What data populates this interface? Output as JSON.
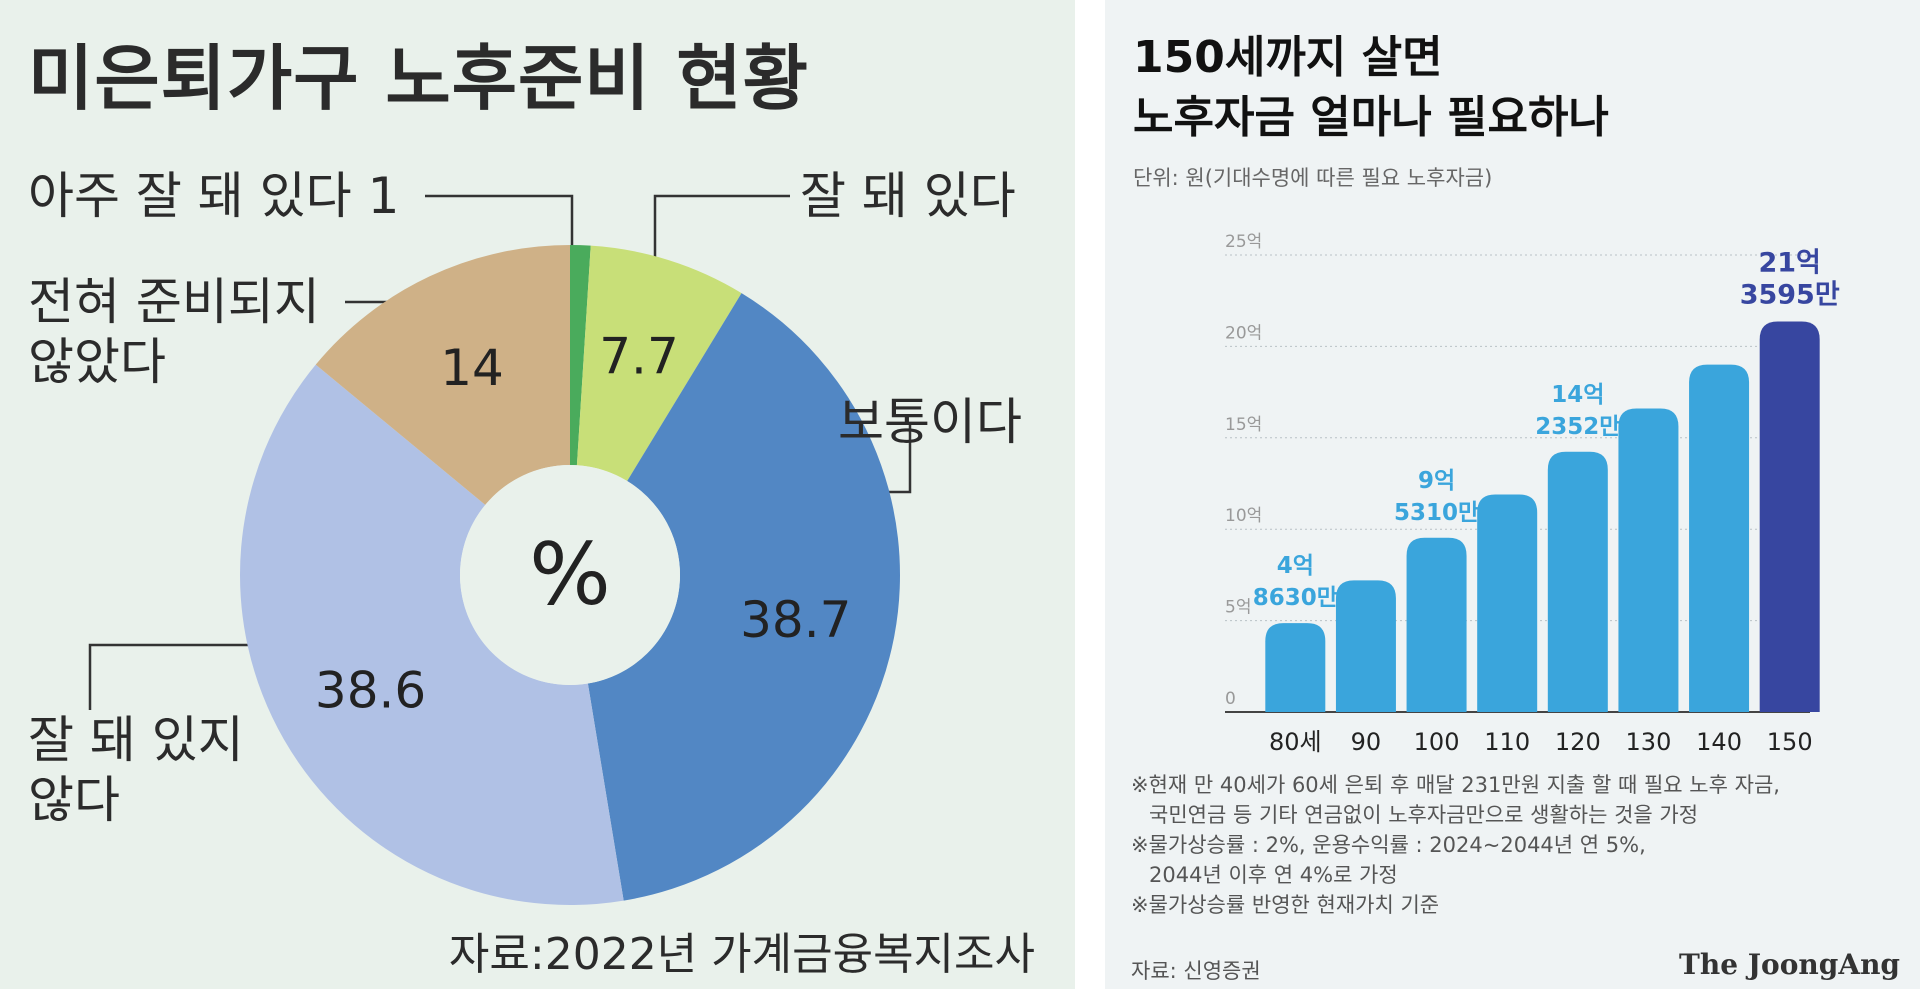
{
  "left": {
    "title": "미은퇴가구 노후준비 현황",
    "source": "자료:2022년 가계금융복지조사",
    "annotations": {
      "very_good": "아주 잘 돼 있다 1",
      "good": "잘 돼 있다",
      "not_prepared_line1": "전혀 준비되지",
      "not_prepared_line2": "않았다",
      "normal": "보통이다",
      "not_good_line1": "잘 돼 있지",
      "not_good_line2": "않다"
    }
  },
  "right": {
    "title_line1": "150세까지 살면",
    "title_line2": "노후자금 얼마나 필요하나",
    "unit": "단위: 원(기대수명에 따른 필요 노후자금)",
    "notes": [
      "※현재 만 40세가 60세 은퇴 후 매달 231만원 지출 할 때 필요 노후 자금,",
      "국민연금 등 기타 연금없이 노후자금만으로 생활하는 것을 가정",
      "※물가상승률 : 2%, 운용수익률 : 2024~2044년 연 5%,",
      "2044년 이후 연 4%로 가정",
      "※물가상승률 반영한 현재가치 기준"
    ],
    "source": "자료: 신영증권",
    "brand": "The JoongAng"
  },
  "colors": {
    "very_good": "#4aab5c",
    "good": "#c8df78",
    "normal": "#5287c4",
    "not_good": "#b0c1e5",
    "not_prepared": "#cfb187",
    "bar": "#3aa5dc",
    "bar_highlight": "#3746a0",
    "bar_label": "#3aa5dc",
    "bar_label_highlight": "#3746a0"
  },
  "chart_data": [
    {
      "type": "pie",
      "title": "미은퇴가구 노후준비 현황",
      "center_label": "%",
      "slices": [
        {
          "key": "very_good",
          "label": "아주 잘 돼 있다",
          "value": 1,
          "value_label": ""
        },
        {
          "key": "good",
          "label": "잘 돼 있다",
          "value": 7.7,
          "value_label": "7.7"
        },
        {
          "key": "normal",
          "label": "보통이다",
          "value": 38.7,
          "value_label": "38.7"
        },
        {
          "key": "not_good",
          "label": "잘 돼 있지 않다",
          "value": 38.6,
          "value_label": "38.6"
        },
        {
          "key": "not_prepared",
          "label": "전혀 준비되지 않았다",
          "value": 14,
          "value_label": "14"
        }
      ]
    },
    {
      "type": "bar",
      "title": "150세까지 살면 노후자금 얼마나 필요하나",
      "ylabel": "원",
      "categories": [
        "80세",
        "90",
        "100",
        "110",
        "120",
        "130",
        "140",
        "150"
      ],
      "values": [
        4.863,
        7.2,
        9.531,
        11.9,
        14.2352,
        16.6,
        19.0,
        21.3595
      ],
      "ylim": [
        0,
        25
      ],
      "yticks": [
        0,
        5,
        10,
        15,
        20,
        25
      ],
      "ytick_labels": [
        "0",
        "5억",
        "10억",
        "15억",
        "20억",
        "25억"
      ],
      "data_labels": [
        {
          "index": 0,
          "line1": "4억",
          "line2": "8630만"
        },
        {
          "index": 2,
          "line1": "9억",
          "line2": "5310만"
        },
        {
          "index": 4,
          "line1": "14억",
          "line2": "2352만"
        },
        {
          "index": 7,
          "line1": "21억",
          "line2": "3595만"
        }
      ],
      "highlight_index": 7,
      "grid": true
    }
  ]
}
